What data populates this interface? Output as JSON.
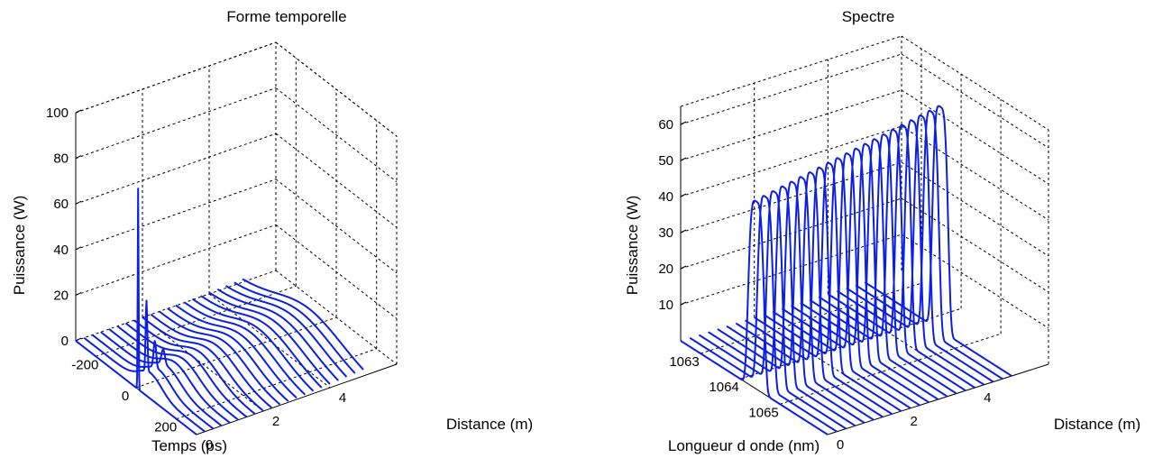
{
  "chart_data": [
    {
      "type": "line",
      "view": "3d-waterfall",
      "title": "Forme temporelle",
      "xlabel": "Temps (ps)",
      "ylabel": "Distance (m)",
      "zlabel": "Puissance (W)",
      "x_ticks": [
        "-200",
        "0",
        "200"
      ],
      "y_ticks": [
        "0",
        "2",
        "4"
      ],
      "z_ticks": [
        "0",
        "20",
        "40",
        "60",
        "80",
        "100"
      ],
      "xlim": [
        -300,
        300
      ],
      "ylim": [
        0,
        6
      ],
      "zlim": [
        0,
        100
      ],
      "grid": true,
      "series_distances": [
        0,
        0.25,
        0.5,
        0.75,
        1,
        1.25,
        1.5,
        1.75,
        2,
        2.25,
        2.5,
        2.75,
        3,
        3.25,
        3.5,
        3.75,
        4,
        4.25,
        4.5,
        4.75,
        5
      ],
      "series_peak_power": [
        88,
        38,
        19,
        14,
        12,
        11,
        10.5,
        10,
        9.5,
        9.2,
        9,
        8.8,
        8.6,
        8.4,
        8.3,
        8.2,
        8.1,
        8,
        7.9,
        7.8,
        7.7
      ],
      "color": "#0b1fe6"
    },
    {
      "type": "line",
      "view": "3d-waterfall",
      "title": "Spectre",
      "xlabel": "Longueur d onde (nm)",
      "ylabel": "Distance (m)",
      "zlabel": "Puissance (W)",
      "x_ticks": [
        "1063",
        "1064",
        "1065"
      ],
      "y_ticks": [
        "0",
        "2",
        "4"
      ],
      "z_ticks": [
        "10",
        "20",
        "30",
        "40",
        "50",
        "60"
      ],
      "xlim": [
        1062.5,
        1066.2
      ],
      "ylim": [
        0,
        6
      ],
      "zlim": [
        0,
        65
      ],
      "grid": true,
      "center_wavelength": 1064.4,
      "series_distances": [
        0,
        0.25,
        0.5,
        0.75,
        1,
        1.25,
        1.5,
        1.75,
        2,
        2.25,
        2.5,
        2.75,
        3,
        3.25,
        3.5,
        3.75,
        4,
        4.25,
        4.5,
        4.75,
        5
      ],
      "series_peak_power": [
        52,
        52.5,
        53,
        53.5,
        54,
        54.5,
        55,
        55.5,
        56,
        56.5,
        57,
        57.5,
        58,
        58.5,
        59,
        59.5,
        60,
        60.5,
        61,
        61.5,
        62
      ],
      "color": "#0b1fe6"
    }
  ]
}
